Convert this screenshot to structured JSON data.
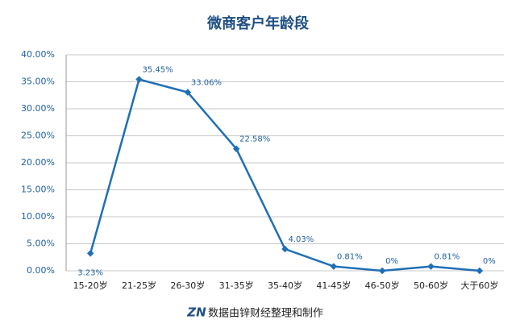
{
  "chart_data": {
    "type": "line",
    "title": "微商客户年龄段",
    "categories": [
      "15-20岁",
      "21-25岁",
      "26-30岁",
      "31-35岁",
      "35-40岁",
      "41-45岁",
      "46-50岁",
      "50-60岁",
      "大于60岁"
    ],
    "values": [
      3.23,
      35.45,
      33.06,
      22.58,
      4.03,
      0.81,
      0,
      0.81,
      0
    ],
    "value_labels": [
      "3.23%",
      "35.45%",
      "33.06%",
      "22.58%",
      "4.03%",
      "0.81%",
      "0%",
      "0.81%",
      "0%"
    ],
    "color": "#1f6fb5",
    "ylim": [
      0,
      40
    ],
    "yticks": [
      {
        "value": 0,
        "label": "0.00%"
      },
      {
        "value": 5,
        "label": "5.00%"
      },
      {
        "value": 10,
        "label": "10.00%"
      },
      {
        "value": 15,
        "label": "15.00%"
      },
      {
        "value": 20,
        "label": "20.00%"
      },
      {
        "value": 25,
        "label": "25.00%"
      },
      {
        "value": 30,
        "label": "30.00%"
      },
      {
        "value": 35,
        "label": "35.00%"
      },
      {
        "value": 40,
        "label": "40.00%"
      }
    ],
    "grid": true,
    "logo": "ZN",
    "source": "数据由锌财经整理和制作"
  }
}
